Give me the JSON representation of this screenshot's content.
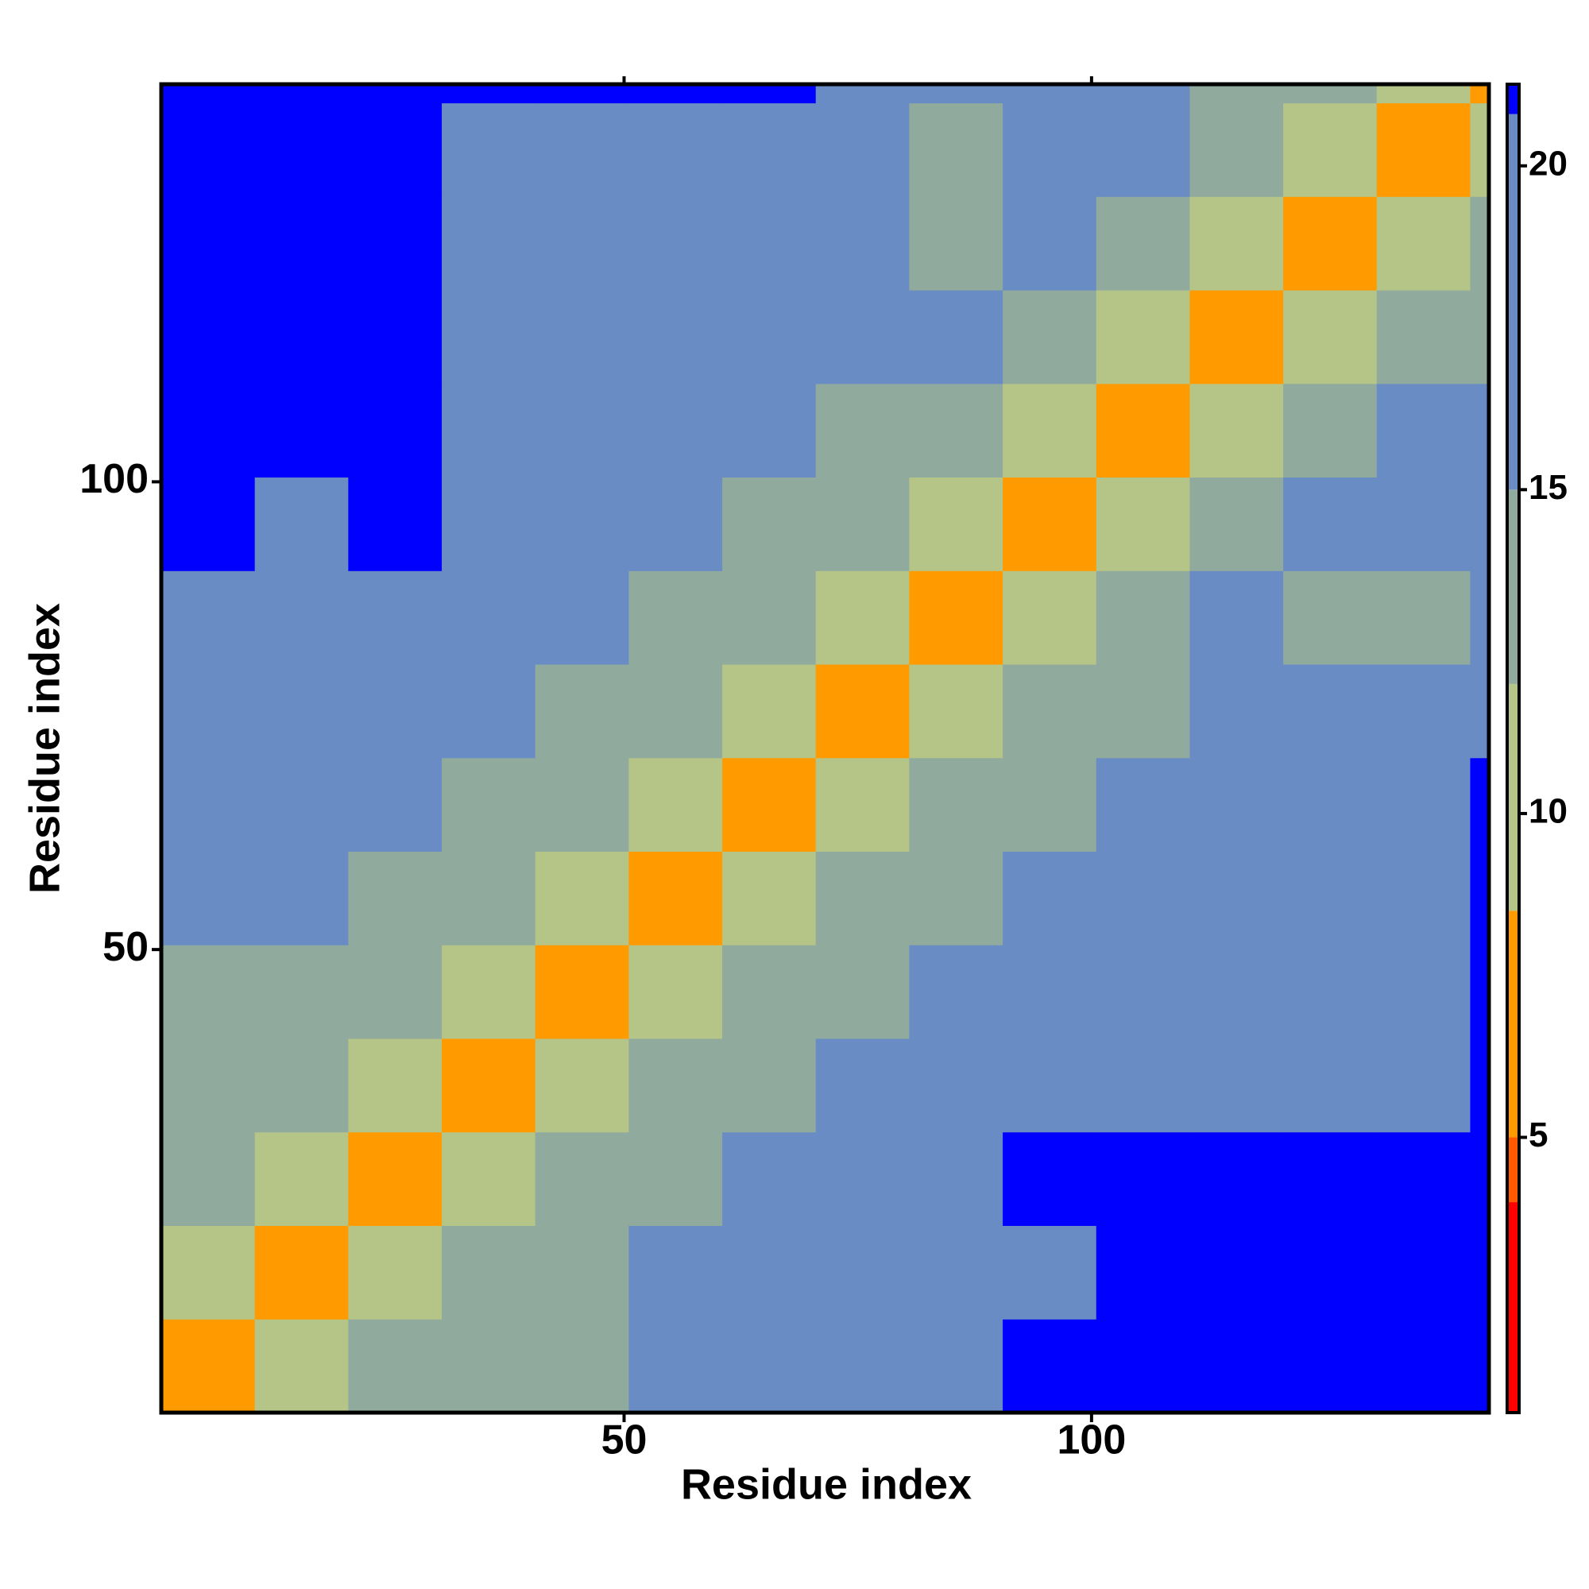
{
  "chart_data": {
    "type": "heatmap",
    "xlabel": "Residue index",
    "ylabel": "Residue index",
    "bins": [
      0.5,
      10.5,
      20.5,
      30.5,
      40.5,
      50.5,
      60.5,
      70.5,
      80.5,
      90.5,
      100.5,
      110.5,
      120.5,
      130.5,
      140.5,
      142.5
    ],
    "xlim": [
      0.5,
      142.5
    ],
    "ylim": [
      0.5,
      142.5
    ],
    "xticks": [
      50,
      100
    ],
    "yticks": [
      50,
      100
    ],
    "z": [
      [
        8,
        11,
        13,
        14,
        14,
        16,
        18,
        19,
        20,
        21,
        21,
        21,
        21,
        21,
        21
      ],
      [
        11,
        8,
        11,
        13,
        14,
        15,
        17,
        18,
        19,
        20,
        21,
        21,
        21,
        21,
        21
      ],
      [
        13,
        11,
        8,
        11,
        13,
        14,
        15,
        17,
        19,
        21,
        21,
        21,
        21,
        21,
        21
      ],
      [
        14,
        13,
        11,
        8,
        11,
        13,
        14,
        15,
        17,
        18,
        19,
        19,
        19,
        20,
        21
      ],
      [
        14,
        14,
        13,
        11,
        8,
        11,
        13,
        14,
        15,
        16,
        17,
        18,
        19,
        19,
        21
      ],
      [
        16,
        15,
        14,
        13,
        11,
        8,
        11,
        12,
        13,
        15,
        16,
        18,
        19,
        19,
        21
      ],
      [
        18,
        17,
        15,
        14,
        13,
        11,
        8,
        11,
        13,
        14,
        15,
        16,
        17,
        18,
        21
      ],
      [
        19,
        18,
        17,
        15,
        14,
        12,
        11,
        8,
        11,
        13,
        14,
        15,
        15,
        16,
        19
      ],
      [
        20,
        19,
        19,
        17,
        15,
        13,
        13,
        11,
        8,
        11,
        13,
        15,
        14,
        14,
        16
      ],
      [
        21,
        20,
        21,
        18,
        16,
        15,
        14,
        13,
        11,
        8,
        11,
        14,
        16,
        15,
        15
      ],
      [
        21,
        21,
        21,
        19,
        17,
        16,
        15,
        14,
        13,
        11,
        8,
        11,
        13,
        15,
        17
      ],
      [
        21,
        21,
        21,
        19,
        18,
        18,
        16,
        15,
        15,
        14,
        11,
        8,
        11,
        13,
        14
      ],
      [
        21,
        21,
        21,
        19,
        19,
        19,
        17,
        15,
        14,
        16,
        13,
        11,
        8,
        11,
        13
      ],
      [
        21,
        21,
        21,
        20,
        19,
        19,
        18,
        16,
        14,
        15,
        15,
        13,
        11,
        8,
        11
      ],
      [
        21,
        21,
        21,
        21,
        21,
        21,
        21,
        19,
        16,
        15,
        17,
        14,
        13,
        11,
        6
      ]
    ],
    "zlim": [
      0.75,
      21.26
    ],
    "zticks": [
      5,
      10,
      15,
      20
    ],
    "colorscale": [
      [
        0.75,
        "#ff0000"
      ],
      [
        4,
        "#ff5a00"
      ],
      [
        5,
        "#ff9a00"
      ],
      [
        8.5,
        "#b5c487"
      ],
      [
        12,
        "#90aa9e"
      ],
      [
        15,
        "#6a8cc4"
      ],
      [
        20.8,
        "#0000ff"
      ]
    ]
  }
}
